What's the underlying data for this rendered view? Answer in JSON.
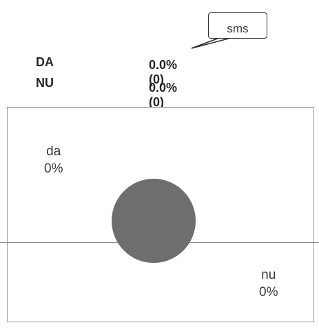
{
  "callout": {
    "text": "sms"
  },
  "chart_data": {
    "type": "pie",
    "categories": [
      "da",
      "nu"
    ],
    "values": [
      0,
      0
    ],
    "legend_rows": [
      {
        "label": "DA",
        "value_text": "0.0% (0)"
      },
      {
        "label": "NU",
        "value_text": "0.0% (0)"
      }
    ],
    "slice_labels": [
      {
        "name": "da",
        "percent_text": "0%"
      },
      {
        "name": "nu",
        "percent_text": "0%"
      }
    ],
    "empty_pie_color": "#6e6e6e"
  }
}
